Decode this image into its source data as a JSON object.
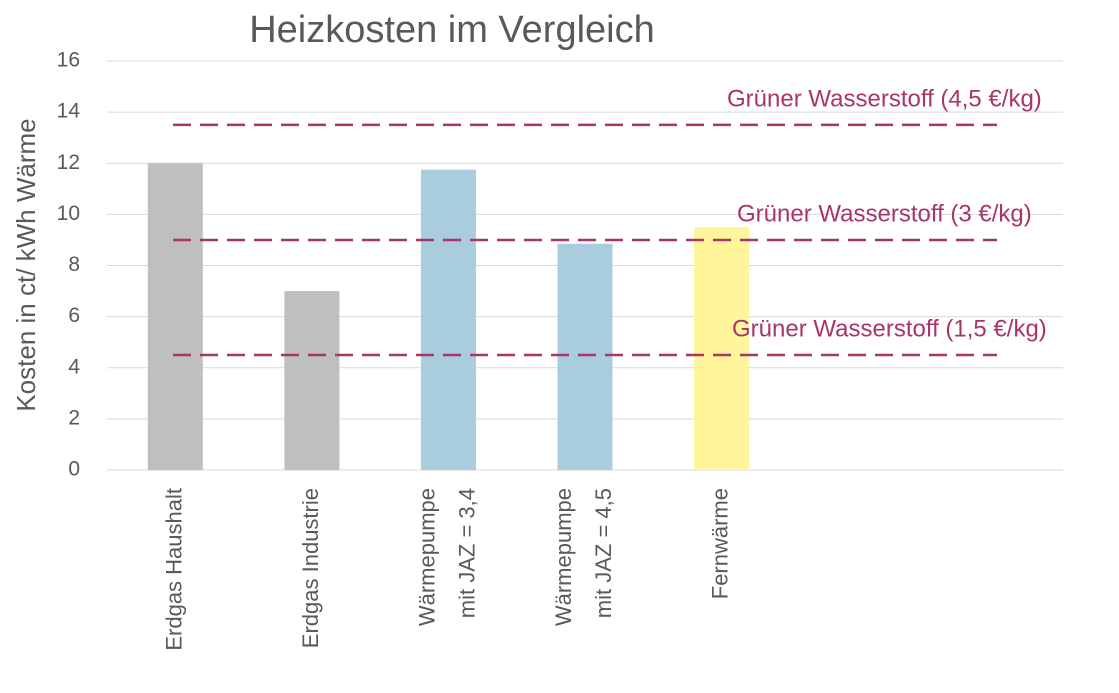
{
  "chart_data": {
    "type": "bar",
    "title": "Heizkosten im Vergleich",
    "y_label": "Kosten in ct/ kWh Wärme",
    "categories": [
      "Erdgas Haushalt",
      "Erdgas Industrie",
      "Wärmepumpe\nmit JAZ = 3,4",
      "Wärmepumpe\nmit JAZ = 4,5",
      "Fernwärme",
      null,
      null
    ],
    "values": [
      12,
      7,
      11.75,
      8.85,
      9.5,
      null,
      null
    ],
    "colors": [
      "#bfbfbf",
      "#bfbfbf",
      "#aacddd",
      "#aacddd",
      "#fff59b",
      null,
      null
    ],
    "ylim": [
      0,
      16
    ],
    "yticks": [
      0,
      2,
      4,
      6,
      8,
      10,
      12,
      14,
      16
    ],
    "grid": true,
    "reference_lines": [
      {
        "value": 13.5,
        "label": "Grüner Wasserstoff  (4,5 €/kg)"
      },
      {
        "value": 9,
        "label": "Grüner Wasserstoff  (3 €/kg)"
      },
      {
        "value": 4.5,
        "label": "Grüner Wasserstoff  (1,5 €/kg)"
      }
    ],
    "reference_color": "#a8356a"
  }
}
